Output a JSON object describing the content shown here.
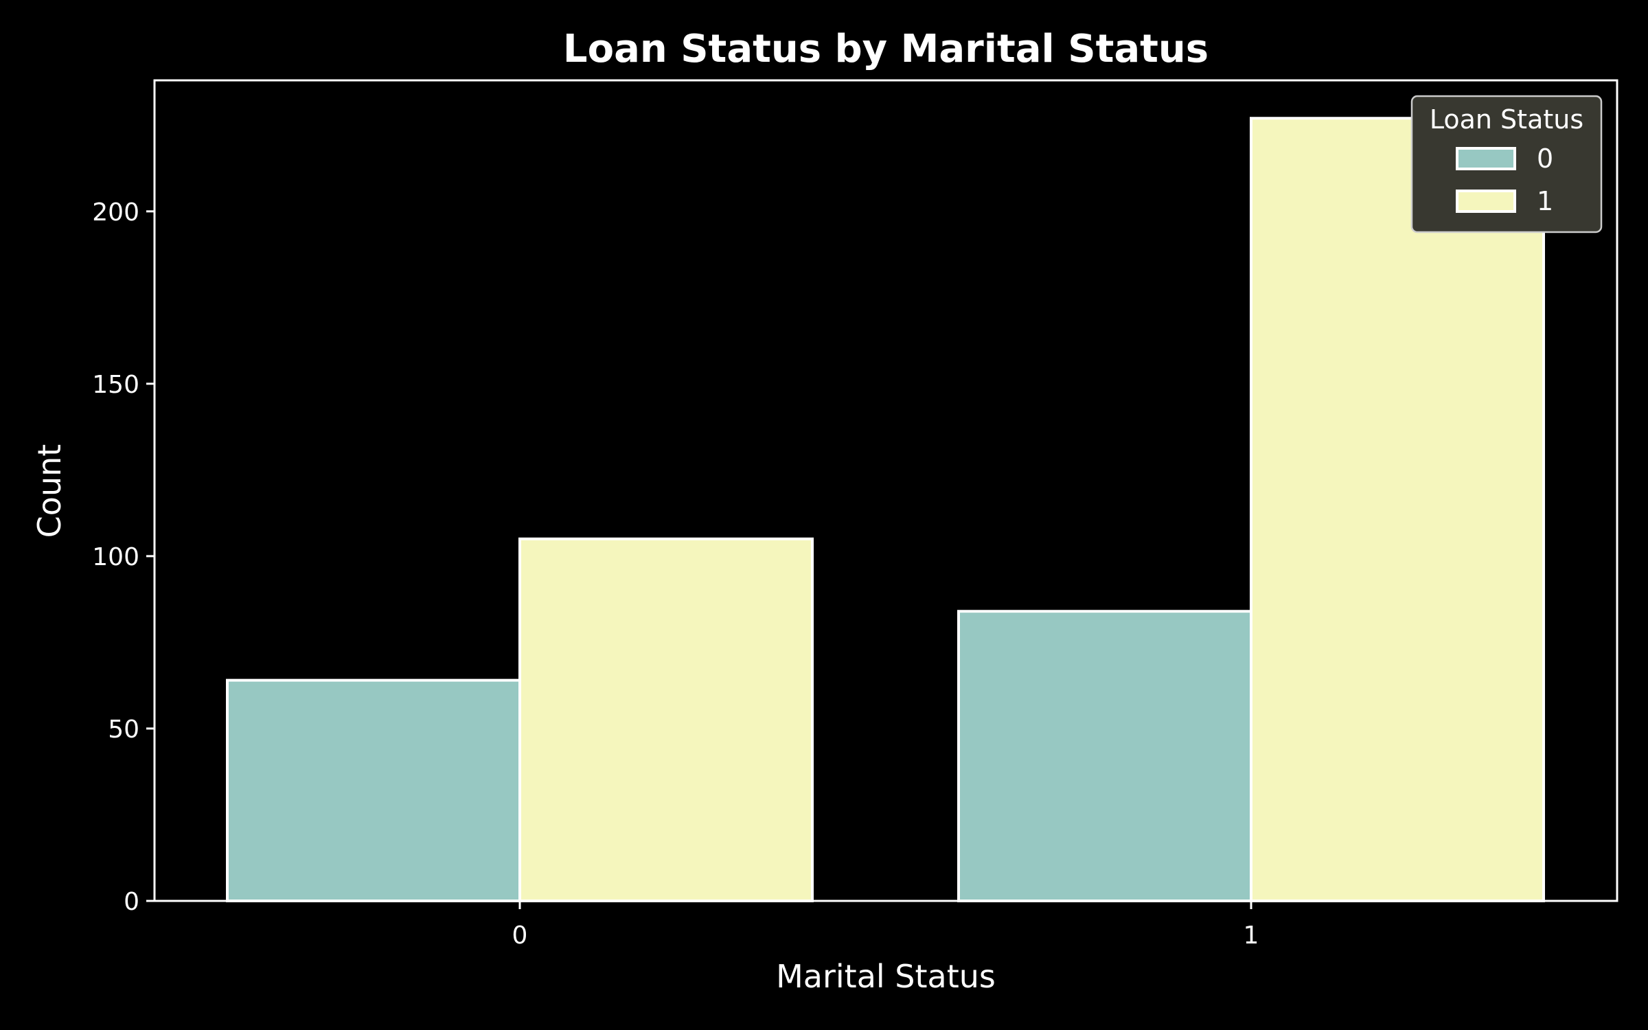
{
  "chart_data": {
    "type": "bar",
    "title": "Loan Status by Marital Status",
    "xlabel": "Marital Status",
    "ylabel": "Count",
    "categories": [
      "0",
      "1"
    ],
    "ylim": [
      0,
      238
    ],
    "yticks": [
      0,
      50,
      100,
      150,
      200
    ],
    "legend": {
      "title": "Loan Status",
      "placement": "top-right"
    },
    "series": [
      {
        "name": "0",
        "color": "#97c8c2",
        "values": [
          64,
          84
        ]
      },
      {
        "name": "1",
        "color": "#f5f6bd",
        "values": [
          105,
          227
        ]
      }
    ],
    "grid": false
  }
}
